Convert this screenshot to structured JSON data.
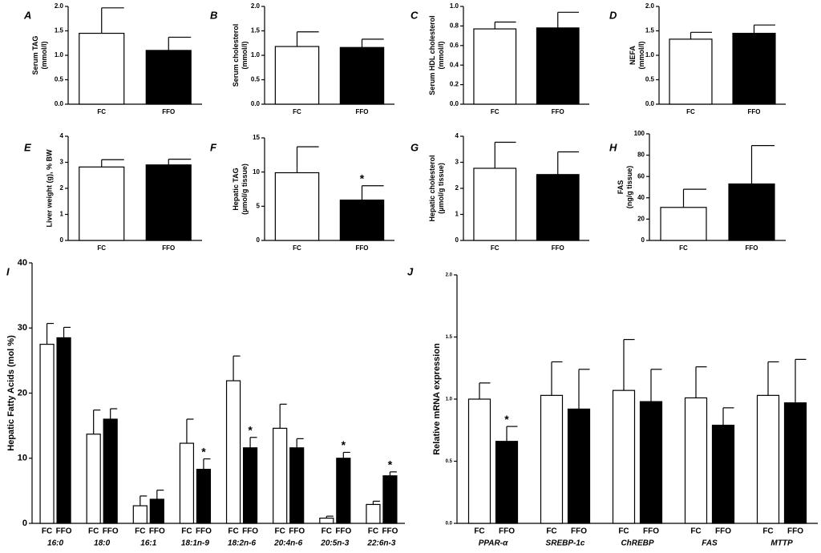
{
  "chart_data": [
    {
      "type": "bar",
      "panel": "A",
      "ylabel": [
        "Serum TAG",
        "(mmol/l)"
      ],
      "categories": [
        "FC",
        "FFO"
      ],
      "values": [
        1.45,
        1.1
      ],
      "errors": [
        0.52,
        0.27
      ],
      "colors": [
        "#ffffff",
        "#000000"
      ],
      "ylim": [
        0,
        2
      ],
      "yticks": [
        {
          "value": 0,
          "label": "0.0"
        },
        0.5,
        {
          "value": 1,
          "label": "1.0"
        },
        1.5,
        {
          "value": 2,
          "label": "2.0"
        }
      ]
    },
    {
      "type": "bar",
      "panel": "B",
      "ylabel": [
        "Serum cholesterol",
        "(mmol/l)"
      ],
      "categories": [
        "FC",
        "FFO"
      ],
      "values": [
        1.18,
        1.16
      ],
      "errors": [
        0.3,
        0.17
      ],
      "colors": [
        "#ffffff",
        "#000000"
      ],
      "ylim": [
        0,
        2
      ],
      "yticks": [
        {
          "value": 0,
          "label": "0.0"
        },
        0.5,
        {
          "value": 1,
          "label": "1.0"
        },
        1.5,
        {
          "value": 2,
          "label": "2.0"
        }
      ]
    },
    {
      "type": "bar",
      "panel": "C",
      "ylabel": [
        "Serum HDL cholesterol",
        "(mmol/l)"
      ],
      "categories": [
        "FC",
        "FFO"
      ],
      "values": [
        0.77,
        0.78
      ],
      "errors": [
        0.07,
        0.16
      ],
      "colors": [
        "#ffffff",
        "#000000"
      ],
      "ylim": [
        0,
        1
      ],
      "yticks": [
        {
          "value": 0,
          "label": "0.0"
        },
        0.2,
        0.4,
        0.6,
        0.8,
        {
          "value": 1,
          "label": "1.0"
        }
      ]
    },
    {
      "type": "bar",
      "panel": "D",
      "ylabel": [
        "NEFA",
        "(mmol/l)"
      ],
      "categories": [
        "FC",
        "FFO"
      ],
      "values": [
        1.33,
        1.45
      ],
      "errors": [
        0.14,
        0.17
      ],
      "colors": [
        "#ffffff",
        "#000000"
      ],
      "ylim": [
        0,
        2
      ],
      "yticks": [
        {
          "value": 0,
          "label": "0.0"
        },
        0.5,
        {
          "value": 1,
          "label": "1.0"
        },
        1.5,
        {
          "value": 2,
          "label": "2.0"
        }
      ]
    },
    {
      "type": "bar",
      "panel": "E",
      "ylabel": [
        "Liver weight (g), % BW"
      ],
      "categories": [
        "FC",
        "FFO"
      ],
      "values": [
        2.82,
        2.9
      ],
      "errors": [
        0.28,
        0.22
      ],
      "colors": [
        "#ffffff",
        "#000000"
      ],
      "ylim": [
        0,
        4
      ],
      "yticks": [
        0,
        1,
        2,
        3,
        4
      ]
    },
    {
      "type": "bar",
      "panel": "F",
      "ylabel": [
        "Hepatic TAG",
        "(µmol/g tissue)"
      ],
      "categories": [
        "FC",
        "FFO"
      ],
      "values": [
        9.9,
        5.9
      ],
      "errors": [
        3.8,
        2.1
      ],
      "significance": [
        null,
        "*"
      ],
      "colors": [
        "#ffffff",
        "#000000"
      ],
      "ylim": [
        0,
        15
      ],
      "yticks": [
        0,
        5,
        10,
        15
      ]
    },
    {
      "type": "bar",
      "panel": "G",
      "ylabel": [
        "Hepatic cholesterol",
        "(µmol/g tissue)"
      ],
      "categories": [
        "FC",
        "FFO"
      ],
      "values": [
        2.77,
        2.53
      ],
      "errors": [
        1.0,
        0.87
      ],
      "colors": [
        "#ffffff",
        "#000000"
      ],
      "ylim": [
        0,
        4
      ],
      "yticks": [
        0,
        1,
        2,
        3,
        4
      ]
    },
    {
      "type": "bar",
      "panel": "H",
      "ylabel": [
        "FAS",
        "(ng/g tissue)"
      ],
      "categories": [
        "FC",
        "FFO"
      ],
      "values": [
        31,
        53
      ],
      "errors": [
        17,
        36
      ],
      "colors": [
        "#ffffff",
        "#000000"
      ],
      "ylim": [
        0,
        100
      ],
      "yticks": [
        0,
        20,
        40,
        60,
        80,
        100
      ]
    },
    {
      "type": "grouped_bar",
      "panel": "I",
      "ylabel": [
        "Hepatic Fatty Acids (mol %)"
      ],
      "categories": [
        "16:0",
        "18:0",
        "16:1",
        "18:1n-9",
        "18:2n-6",
        "20:4n-6",
        "20:5n-3",
        "22:6n-3"
      ],
      "series": [
        {
          "name": "FC",
          "color": "#ffffff",
          "values": [
            27.5,
            13.7,
            2.7,
            12.3,
            21.9,
            14.6,
            0.8,
            2.9
          ],
          "errors": [
            3.2,
            3.7,
            1.5,
            3.7,
            3.8,
            3.7,
            0.3,
            0.5
          ]
        },
        {
          "name": "FFO",
          "color": "#000000",
          "values": [
            28.5,
            16.0,
            3.7,
            8.3,
            11.6,
            11.6,
            10.0,
            7.3
          ],
          "errors": [
            1.6,
            1.6,
            1.4,
            1.6,
            1.6,
            1.4,
            0.9,
            0.6
          ],
          "significance": [
            null,
            null,
            null,
            "*",
            "*",
            null,
            "*",
            "*"
          ]
        }
      ],
      "ylim": [
        0,
        40
      ],
      "yticks": [
        0,
        10,
        20,
        30,
        40
      ]
    },
    {
      "type": "grouped_bar",
      "panel": "J",
      "ylabel": [
        "Relative mRNA expression"
      ],
      "categories": [
        "PPAR-α",
        "SREBP-1c",
        "ChREBP",
        "FAS",
        "MTTP"
      ],
      "series": [
        {
          "name": "FC",
          "color": "#ffffff",
          "values": [
            1.0,
            1.03,
            1.07,
            1.01,
            1.03
          ],
          "errors": [
            0.13,
            0.27,
            0.41,
            0.25,
            0.27
          ]
        },
        {
          "name": "FFO",
          "color": "#000000",
          "values": [
            0.66,
            0.92,
            0.98,
            0.79,
            0.97
          ],
          "errors": [
            0.12,
            0.32,
            0.26,
            0.14,
            0.35
          ],
          "significance": [
            "*",
            null,
            null,
            null,
            null
          ]
        }
      ],
      "ylim": [
        0,
        2
      ],
      "yticks": [
        {
          "value": 0,
          "label": "0.0"
        },
        0.5,
        {
          "value": 1,
          "label": "1.0"
        },
        1.5,
        {
          "value": 2,
          "label": "2.0"
        }
      ]
    }
  ]
}
